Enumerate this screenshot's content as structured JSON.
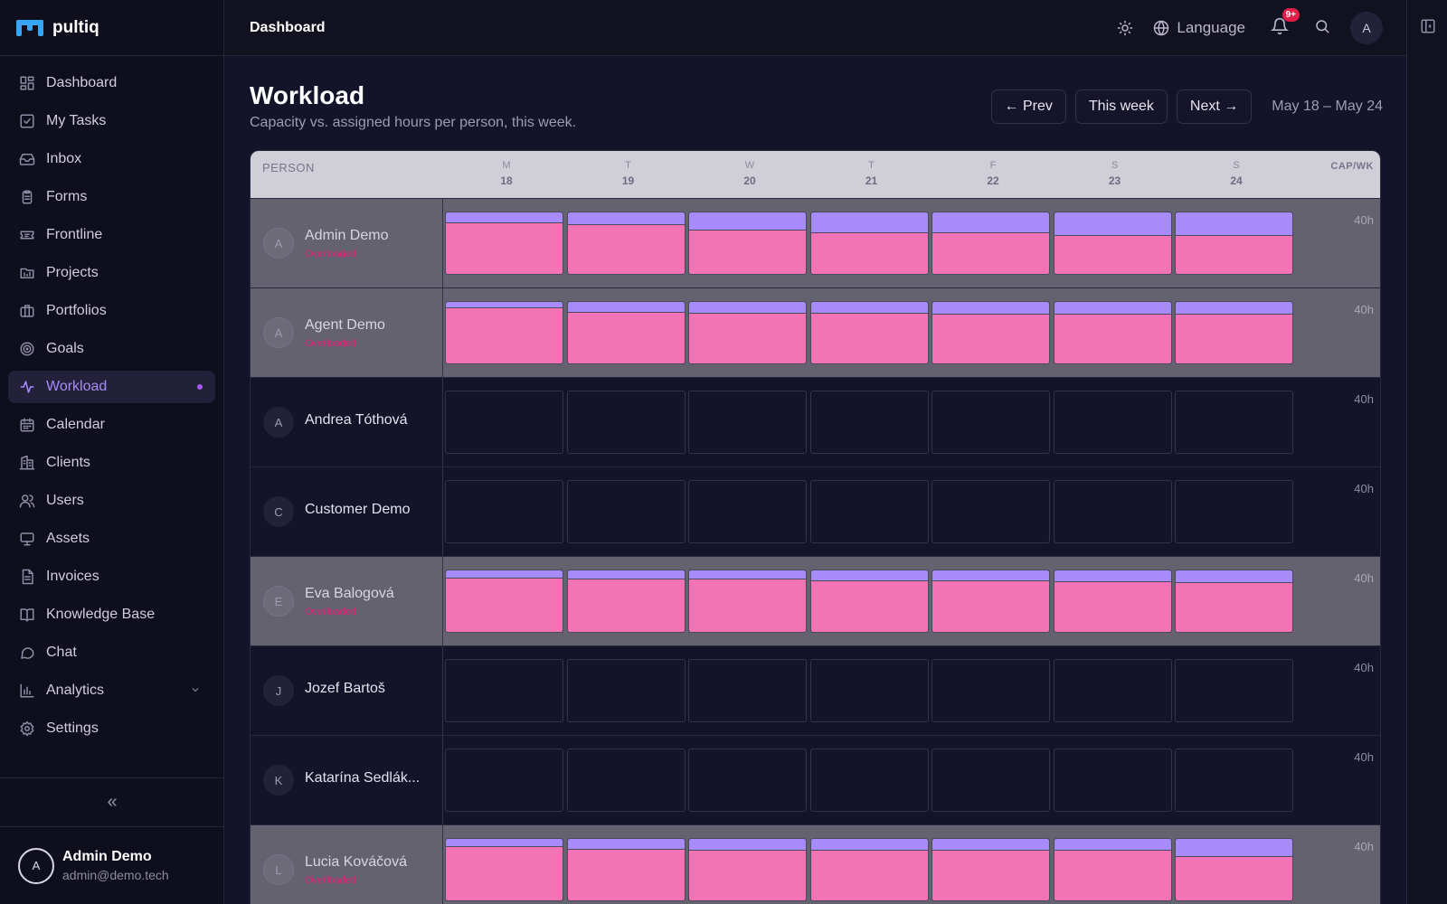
{
  "app": {
    "name": "pultiq"
  },
  "sidebar": {
    "items": [
      {
        "key": "dashboard",
        "label": "Dashboard",
        "icon": "grid-icon"
      },
      {
        "key": "my-tasks",
        "label": "My Tasks",
        "icon": "checkbox-icon"
      },
      {
        "key": "inbox",
        "label": "Inbox",
        "icon": "inbox-icon"
      },
      {
        "key": "forms",
        "label": "Forms",
        "icon": "clipboard-icon"
      },
      {
        "key": "frontline",
        "label": "Frontline",
        "icon": "ticket-icon"
      },
      {
        "key": "projects",
        "label": "Projects",
        "icon": "chart-folder-icon"
      },
      {
        "key": "portfolios",
        "label": "Portfolios",
        "icon": "briefcase-icon"
      },
      {
        "key": "goals",
        "label": "Goals",
        "icon": "target-icon"
      },
      {
        "key": "workload",
        "label": "Workload",
        "icon": "activity-icon",
        "active": true
      },
      {
        "key": "calendar",
        "label": "Calendar",
        "icon": "calendar-icon"
      },
      {
        "key": "clients",
        "label": "Clients",
        "icon": "building-icon"
      },
      {
        "key": "users",
        "label": "Users",
        "icon": "users-icon"
      },
      {
        "key": "assets",
        "label": "Assets",
        "icon": "monitor-icon"
      },
      {
        "key": "invoices",
        "label": "Invoices",
        "icon": "document-icon"
      },
      {
        "key": "knowledge-base",
        "label": "Knowledge Base",
        "icon": "book-icon"
      },
      {
        "key": "chat",
        "label": "Chat",
        "icon": "chat-icon"
      },
      {
        "key": "analytics",
        "label": "Analytics",
        "icon": "bar-chart-icon",
        "expandable": true
      },
      {
        "key": "settings",
        "label": "Settings",
        "icon": "gear-icon"
      }
    ],
    "collapse_glyph": "«",
    "user": {
      "initial": "A",
      "name": "Admin Demo",
      "email": "admin@demo.tech"
    }
  },
  "topbar": {
    "breadcrumb": "Dashboard",
    "language_label": "Language",
    "notification_badge": "9+",
    "avatar_initial": "A"
  },
  "page": {
    "title": "Workload",
    "subtitle": "Capacity vs. assigned hours per person, this week.",
    "prev_label": "← Prev",
    "this_week_label": "This week",
    "next_label": "Next →",
    "date_range": "May 18 – May 24"
  },
  "grid": {
    "person_header": "PERSON",
    "capacity_header": "CAP/WK",
    "days": [
      {
        "letter": "M",
        "num": "18"
      },
      {
        "letter": "T",
        "num": "19"
      },
      {
        "letter": "W",
        "num": "20"
      },
      {
        "letter": "T",
        "num": "21"
      },
      {
        "letter": "F",
        "num": "22"
      },
      {
        "letter": "S",
        "num": "23"
      },
      {
        "letter": "S",
        "num": "24"
      }
    ],
    "rows": [
      {
        "initial": "A",
        "name": "Admin Demo",
        "status": "Overloaded",
        "overloaded": true,
        "capacity": "40h",
        "purple": [
          0.16,
          0.17,
          0.26,
          0.33,
          0.32,
          0.38,
          0.38
        ],
        "pink": [
          0.82,
          0.78,
          0.7,
          0.66,
          0.66,
          0.62,
          0.62
        ]
      },
      {
        "initial": "A",
        "name": "Agent Demo",
        "status": "Overloaded",
        "overloaded": true,
        "capacity": "40h",
        "purple": [
          0.12,
          0.16,
          0.18,
          0.18,
          0.2,
          0.2,
          0.2
        ],
        "pink": [
          0.88,
          0.82,
          0.8,
          0.8,
          0.78,
          0.78,
          0.78
        ]
      },
      {
        "initial": "A",
        "name": "Andrea Tóthová",
        "overloaded": false,
        "capacity": "40h"
      },
      {
        "initial": "C",
        "name": "Customer Demo",
        "overloaded": false,
        "capacity": "40h"
      },
      {
        "initial": "E",
        "name": "Eva Balogová",
        "status": "Overloaded",
        "overloaded": true,
        "capacity": "40h",
        "purple": [
          0.14,
          0.14,
          0.16,
          0.18,
          0.18,
          0.18,
          0.22
        ],
        "pink": [
          0.86,
          0.84,
          0.84,
          0.82,
          0.82,
          0.8,
          0.78
        ]
      },
      {
        "initial": "J",
        "name": "Jozef Bartoš",
        "overloaded": false,
        "capacity": "40h"
      },
      {
        "initial": "K",
        "name": "Katarína Sedlák...",
        "overloaded": false,
        "capacity": "40h"
      },
      {
        "initial": "L",
        "name": "Lucia Kováčová",
        "status": "Overloaded",
        "overloaded": true,
        "capacity": "40h",
        "purple": [
          0.12,
          0.16,
          0.18,
          0.18,
          0.18,
          0.18,
          0.28
        ],
        "pink": [
          0.86,
          0.82,
          0.8,
          0.8,
          0.8,
          0.8,
          0.7
        ]
      }
    ]
  },
  "colors": {
    "accent": "#a78bfa",
    "assigned": "#f472b6",
    "overloaded": "#db2777",
    "badge": "#e11d48"
  }
}
